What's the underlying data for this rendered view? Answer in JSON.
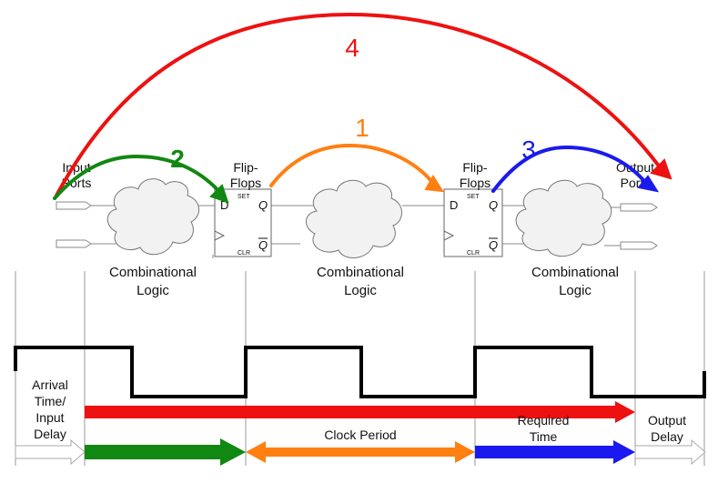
{
  "labels": {
    "input_ports": [
      "Input",
      "Ports"
    ],
    "output_ports": [
      "Output",
      "Ports"
    ],
    "flip_flops": [
      "Flip-",
      "Flops"
    ],
    "combinational_logic": [
      "Combinational",
      "Logic"
    ],
    "arrival": [
      "Arrival",
      "Time/",
      "Input",
      "Delay"
    ],
    "clock_period": "Clock Period",
    "required_time": [
      "Required",
      "Time"
    ],
    "output_delay": [
      "Output",
      "Delay"
    ]
  },
  "flipflop_pins": {
    "d": "D",
    "q": "Q",
    "qbar": "Q",
    "set": "SET",
    "clr": "CLR"
  },
  "paths": [
    {
      "number": "1",
      "color": "#ff7f11"
    },
    {
      "number": "2",
      "color": "#118811"
    },
    {
      "number": "3",
      "color": "#1a1aee"
    },
    {
      "number": "4",
      "color": "#ee1111"
    }
  ],
  "colors": {
    "waveform": "#000000",
    "gridline": "#999999",
    "cloud": "#f2f2f2",
    "hollow_arrow": "#bbbbbb"
  }
}
